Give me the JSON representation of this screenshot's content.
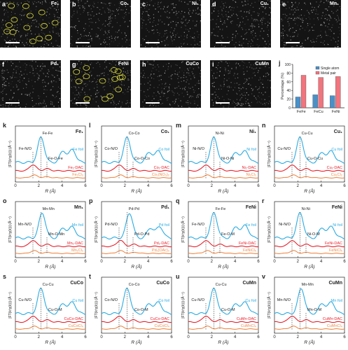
{
  "microscopy": [
    {
      "panel": "a",
      "element": "Fe₁",
      "circles": true
    },
    {
      "panel": "b",
      "element": "Co₁",
      "circles": false
    },
    {
      "panel": "c",
      "element": "Ni₁",
      "circles": false
    },
    {
      "panel": "d",
      "element": "Cu₁",
      "circles": false
    },
    {
      "panel": "e",
      "element": "Mn₁",
      "circles": false
    },
    {
      "panel": "f",
      "element": "Pd₁",
      "circles": false
    },
    {
      "panel": "g",
      "element": "FeNi",
      "circles": true
    },
    {
      "panel": "h",
      "element": "CuCo",
      "circles": false
    },
    {
      "panel": "i",
      "element": "CuMn",
      "circles": false
    }
  ],
  "colors": {
    "foil": "#29abe2",
    "dac": "#e8202a",
    "ref": "#f08a4b",
    "single_atom": "#4a90c8",
    "metal_pair": "#f0757e",
    "dotted": "#333333"
  },
  "chart_data": [
    {
      "panel": "j",
      "type": "bar",
      "categories": [
        "FeFe",
        "FeCu",
        "FeNi"
      ],
      "series": [
        {
          "name": "Single atom",
          "values": [
            25,
            30,
            28
          ]
        },
        {
          "name": "Metal pair",
          "values": [
            75,
            70,
            72
          ]
        }
      ],
      "ylabel": "Percentage (%)",
      "ylim": [
        0,
        100
      ],
      "yticks": [
        0,
        20,
        40,
        60,
        80,
        100
      ]
    },
    {
      "panel": "k",
      "element": "Fe₁",
      "type": "line",
      "xlabel": "R (Å)",
      "ylabel": "|FT(k³χ(k))| (Å⁻⁴)",
      "xlim": [
        0,
        6
      ],
      "xticks": [
        0,
        2,
        4,
        6
      ],
      "peak_labels": [
        "Fe-N/O",
        "Fe-Fe",
        "Fe-O-Fe"
      ],
      "series": [
        {
          "name": "Fe foil",
          "peaks": [
            [
              2.2,
              1.0
            ],
            [
              4.1,
              0.45
            ],
            [
              4.9,
              0.5
            ]
          ]
        },
        {
          "name": "Fe₁-DAC",
          "peaks": [
            [
              1.5,
              0.55
            ],
            [
              2.7,
              0.18
            ]
          ]
        },
        {
          "name": "Fe₁Cl₃",
          "peaks": [
            [
              1.6,
              0.4
            ],
            [
              2.7,
              0.15
            ]
          ]
        }
      ]
    },
    {
      "panel": "l",
      "element": "Co₁",
      "type": "line",
      "xlabel": "R (Å)",
      "ylabel": "|FT(k³χ(k))| (Å⁻⁴)",
      "xlim": [
        0,
        6
      ],
      "xticks": [
        0,
        2,
        4,
        6
      ],
      "peak_labels": [
        "Co-N/O",
        "Co-Co",
        "Co-O-Co"
      ],
      "series": [
        {
          "name": "Co foil",
          "peaks": [
            [
              2.2,
              1.0
            ],
            [
              4.1,
              0.4
            ],
            [
              4.9,
              0.45
            ]
          ]
        },
        {
          "name": "Co₁-DAC",
          "peaks": [
            [
              1.5,
              0.55
            ],
            [
              2.7,
              0.18
            ]
          ]
        },
        {
          "name": "Co₁(NO₃)₂",
          "peaks": [
            [
              1.6,
              0.4
            ],
            [
              2.8,
              0.15
            ]
          ]
        }
      ]
    },
    {
      "panel": "m",
      "element": "Ni₁",
      "type": "line",
      "xlabel": "R (Å)",
      "ylabel": "|FT(k³χ(k))| (Å⁻⁴)",
      "xlim": [
        0,
        6
      ],
      "xticks": [
        0,
        2,
        4,
        6
      ],
      "peak_labels": [
        "Ni-N/O",
        "Ni-Ni",
        "Ni-O-Ni"
      ],
      "series": [
        {
          "name": "Ni foil",
          "peaks": [
            [
              2.2,
              1.0
            ],
            [
              4.1,
              0.4
            ],
            [
              4.9,
              0.45
            ]
          ]
        },
        {
          "name": "Ni₁-DAC",
          "peaks": [
            [
              1.5,
              0.55
            ],
            [
              2.7,
              0.18
            ]
          ]
        },
        {
          "name": "Ni₁Cl₂",
          "peaks": [
            [
              1.6,
              0.4
            ],
            [
              2.8,
              0.15
            ]
          ]
        }
      ]
    },
    {
      "panel": "n",
      "element": "Cu₁",
      "type": "line",
      "xlabel": "R (Å)",
      "ylabel": "|FT(k³χ(k))| (Å⁻⁴)",
      "xlim": [
        0,
        6
      ],
      "xticks": [
        0,
        2,
        4,
        6
      ],
      "peak_labels": [
        "Cu-N/O",
        "Cu-Cu",
        "Cu-O-Cu"
      ],
      "series": [
        {
          "name": "Cu foil",
          "peaks": [
            [
              2.2,
              1.0
            ],
            [
              4.1,
              0.4
            ],
            [
              4.9,
              0.45
            ]
          ]
        },
        {
          "name": "Cu₁-DAC",
          "peaks": [
            [
              1.5,
              0.55
            ],
            [
              2.7,
              0.18
            ]
          ]
        },
        {
          "name": "Cu₁Cl₂",
          "peaks": [
            [
              1.6,
              0.4
            ],
            [
              2.8,
              0.15
            ]
          ]
        }
      ]
    },
    {
      "panel": "o",
      "element": "Mn₁",
      "type": "line",
      "xlabel": "R (Å)",
      "ylabel": "|FT(k³χ(k))| (Å⁻⁴)",
      "xlim": [
        0,
        6
      ],
      "xticks": [
        0,
        2,
        4,
        6
      ],
      "peak_labels": [
        "Mn-N/O",
        "Mn-Mn",
        "Mn-O-Mn"
      ],
      "series": [
        {
          "name": "Mn foil",
          "peaks": [
            [
              2.3,
              1.0
            ],
            [
              4.1,
              0.4
            ],
            [
              4.9,
              0.45
            ]
          ]
        },
        {
          "name": "Mn₁-DAC",
          "peaks": [
            [
              1.5,
              0.55
            ],
            [
              2.7,
              0.18
            ]
          ]
        },
        {
          "name": "Mn₁Cl₂",
          "peaks": [
            [
              1.6,
              0.4
            ],
            [
              2.8,
              0.15
            ]
          ]
        }
      ]
    },
    {
      "panel": "p",
      "element": "Pd₁",
      "type": "line",
      "xlabel": "R (Å)",
      "ylabel": "|FT(k³χ(k))| (Å⁻⁴)",
      "xlim": [
        0,
        6
      ],
      "xticks": [
        0,
        2,
        4,
        6
      ],
      "peak_labels": [
        "Pd-N/O",
        "Pd-Pd",
        "Pd-O-Pd"
      ],
      "series": [
        {
          "name": "Pd foil",
          "peaks": [
            [
              2.4,
              1.0
            ],
            [
              4.2,
              0.4
            ],
            [
              5.0,
              0.45
            ]
          ]
        },
        {
          "name": "Pd₁-DAC",
          "peaks": [
            [
              1.6,
              0.55
            ],
            [
              2.8,
              0.18
            ]
          ]
        },
        {
          "name": "Pd₁(OAc)₂",
          "peaks": [
            [
              1.6,
              0.4
            ],
            [
              2.9,
              0.15
            ]
          ]
        }
      ]
    },
    {
      "panel": "q",
      "element": "FeNi",
      "type": "line",
      "xlabel": "R (Å)",
      "ylabel": "|FT(k³χ(k))| (Å⁻⁴)",
      "xlim": [
        0,
        6
      ],
      "xticks": [
        0,
        2,
        4,
        6
      ],
      "peak_labels": [
        "Fe-N/O",
        "Fe-Fe",
        "Fe-O-M"
      ],
      "series": [
        {
          "name": "Fe foil",
          "peaks": [
            [
              2.2,
              1.0
            ],
            [
              4.1,
              0.45
            ],
            [
              4.9,
              0.5
            ]
          ]
        },
        {
          "name": "FeNi-DAC",
          "peaks": [
            [
              1.5,
              0.55
            ],
            [
              2.7,
              0.18
            ]
          ]
        },
        {
          "name": "FeNiCl₅",
          "peaks": [
            [
              1.6,
              0.4
            ],
            [
              2.8,
              0.15
            ]
          ]
        }
      ]
    },
    {
      "panel": "r",
      "element": "FeNi",
      "type": "line",
      "xlabel": "R (Å)",
      "ylabel": "|FT(k³χ(k))| (Å⁻⁴)",
      "xlim": [
        0,
        6
      ],
      "xticks": [
        0,
        2,
        4,
        6
      ],
      "peak_labels": [
        "Ni-N/O",
        "Ni-Ni",
        "Ni-O-M"
      ],
      "series": [
        {
          "name": "Ni foil",
          "peaks": [
            [
              2.2,
              1.0
            ],
            [
              4.1,
              0.4
            ],
            [
              4.9,
              0.45
            ]
          ]
        },
        {
          "name": "FeNi-DAC",
          "peaks": [
            [
              1.5,
              0.55
            ],
            [
              2.7,
              0.18
            ]
          ]
        },
        {
          "name": "FeNiCl₅",
          "peaks": [
            [
              1.6,
              0.4
            ],
            [
              2.8,
              0.15
            ]
          ]
        }
      ]
    },
    {
      "panel": "s",
      "element": "CuCo",
      "type": "line",
      "xlabel": "R (Å)",
      "ylabel": "|FT(k³χ(k))| (Å⁻⁴)",
      "xlim": [
        0,
        6
      ],
      "xticks": [
        0,
        2,
        4,
        6
      ],
      "peak_labels": [
        "Cu-N/O",
        "Cu-Cu",
        "Cu-O-M"
      ],
      "series": [
        {
          "name": "Cu foil",
          "peaks": [
            [
              2.2,
              1.0
            ],
            [
              4.1,
              0.4
            ],
            [
              4.9,
              0.45
            ]
          ]
        },
        {
          "name": "CuCo-DAC",
          "peaks": [
            [
              1.5,
              0.55
            ],
            [
              2.7,
              0.18
            ]
          ]
        },
        {
          "name": "CuCoCl₄",
          "peaks": [
            [
              1.6,
              0.4
            ],
            [
              2.8,
              0.15
            ]
          ]
        }
      ]
    },
    {
      "panel": "t",
      "element": "CuCo",
      "type": "line",
      "xlabel": "R (Å)",
      "ylabel": "|FT(k³χ(k))| (Å⁻⁴)",
      "xlim": [
        0,
        6
      ],
      "xticks": [
        0,
        2,
        4,
        6
      ],
      "peak_labels": [
        "Co-N/O",
        "Co-Co",
        "Co-O-M"
      ],
      "series": [
        {
          "name": "Co foil",
          "peaks": [
            [
              2.2,
              1.0
            ],
            [
              4.1,
              0.4
            ],
            [
              4.9,
              0.45
            ]
          ]
        },
        {
          "name": "CuCo-DAC",
          "peaks": [
            [
              1.5,
              0.55
            ],
            [
              2.7,
              0.18
            ]
          ]
        },
        {
          "name": "CuCoCl₄",
          "peaks": [
            [
              1.6,
              0.4
            ],
            [
              2.8,
              0.15
            ]
          ]
        }
      ]
    },
    {
      "panel": "u",
      "element": "CuMn",
      "type": "line",
      "xlabel": "R (Å)",
      "ylabel": "|FT(k³χ(k))| (Å⁻⁴)",
      "xlim": [
        0,
        6
      ],
      "xticks": [
        0,
        2,
        4,
        6
      ],
      "peak_labels": [
        "Cu-N/O",
        "Cu-Cu",
        "Cu-O-M"
      ],
      "series": [
        {
          "name": "Cu foil",
          "peaks": [
            [
              2.2,
              1.0
            ],
            [
              4.1,
              0.4
            ],
            [
              4.9,
              0.45
            ]
          ]
        },
        {
          "name": "CuMn-DAC",
          "peaks": [
            [
              1.5,
              0.55
            ],
            [
              2.7,
              0.18
            ]
          ]
        },
        {
          "name": "CuMnCl₄",
          "peaks": [
            [
              1.6,
              0.4
            ],
            [
              2.8,
              0.15
            ]
          ]
        }
      ]
    },
    {
      "panel": "v",
      "element": "CuMn",
      "type": "line",
      "xlabel": "R (Å)",
      "ylabel": "|FT(k³χ(k))| (Å⁻⁴)",
      "xlim": [
        0,
        6
      ],
      "xticks": [
        0,
        2,
        4,
        6
      ],
      "peak_labels": [
        "Mn-N/O",
        "Mn-Mn",
        "Mn-O-M"
      ],
      "series": [
        {
          "name": "Mn foil",
          "peaks": [
            [
              2.3,
              1.0
            ],
            [
              4.1,
              0.4
            ],
            [
              4.9,
              0.45
            ]
          ]
        },
        {
          "name": "CuMn-DAC",
          "peaks": [
            [
              1.5,
              0.55
            ],
            [
              2.7,
              0.18
            ]
          ]
        },
        {
          "name": "CuMnCl₄",
          "peaks": [
            [
              1.6,
              0.4
            ],
            [
              2.8,
              0.15
            ]
          ]
        }
      ]
    }
  ]
}
